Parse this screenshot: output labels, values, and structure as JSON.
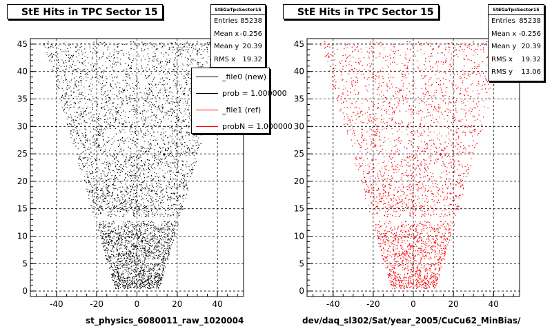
{
  "panels": [
    {
      "title": "StE Hits in TPC Sector 15",
      "stats": {
        "name": "StEGaTpcSector15",
        "rows": [
          {
            "label": "Entries",
            "value": "85238"
          },
          {
            "label": "Mean x",
            "value": "-0.256"
          },
          {
            "label": "Mean y",
            "value": "20.39"
          },
          {
            "label": "RMS x",
            "value": "19.32"
          }
        ]
      },
      "legend": [
        {
          "text": "_file0 (new)",
          "color": "#000000"
        },
        {
          "text": "prob = 1.000000",
          "color": "#000000"
        },
        {
          "text": "_file1 (ref)",
          "color": "#ff0000"
        },
        {
          "text": "probN = 1.000000",
          "color": "#ff0000"
        }
      ],
      "xlabel": "st_physics_6080011_raw_1020004",
      "point_color": "#000000"
    },
    {
      "title": "StE Hits in TPC Sector 15",
      "stats": {
        "name": "StEGaTpcSector15",
        "rows": [
          {
            "label": "Entries",
            "value": "85238"
          },
          {
            "label": "Mean x",
            "value": "-0.256"
          },
          {
            "label": "Mean y",
            "value": "20.39"
          },
          {
            "label": "RMS x",
            "value": "19.32"
          },
          {
            "label": "RMS y",
            "value": "13.06"
          }
        ]
      },
      "xlabel": "dev/daq_sl302/Sat/year_2005/CuCu62_MinBias/",
      "point_color": "#ff0000"
    }
  ],
  "chart_data": [
    {
      "type": "scatter",
      "title": "StE Hits in TPC Sector 15",
      "xlabel": "st_physics_6080011_raw_1020004",
      "ylabel": "",
      "xlim": [
        -53,
        53
      ],
      "ylim": [
        -1,
        46
      ],
      "x_ticks": [
        -40,
        -20,
        0,
        20,
        40
      ],
      "y_ticks": [
        0,
        5,
        10,
        15,
        20,
        25,
        30,
        35,
        40,
        45
      ],
      "grid": true,
      "color": "#000000",
      "entries": 85238,
      "mean_x": -0.256,
      "mean_y": 20.39,
      "rms_x": 19.32,
      "shape": {
        "description": "TPC sector pad-row hits, trapezoid widening with y",
        "bottom_y": 0.5,
        "top_y": 45.5,
        "half_width_at_bottom": 11,
        "half_width_at_top": 47,
        "gap_y": [
          12.8,
          13.6
        ]
      }
    },
    {
      "type": "scatter",
      "title": "StE Hits in TPC Sector 15",
      "xlabel": "dev/daq_sl302/Sat/year_2005/CuCu62_MinBias/",
      "ylabel": "",
      "xlim": [
        -53,
        53
      ],
      "ylim": [
        -1,
        46
      ],
      "x_ticks": [
        -40,
        -20,
        0,
        20,
        40
      ],
      "y_ticks": [
        0,
        5,
        10,
        15,
        20,
        25,
        30,
        35,
        40,
        45
      ],
      "grid": true,
      "color": "#ff0000",
      "entries": 85238,
      "mean_x": -0.256,
      "mean_y": 20.39,
      "rms_x": 19.32,
      "rms_y": 13.06,
      "shape": {
        "description": "TPC sector pad-row hits, trapezoid widening with y",
        "bottom_y": 0.5,
        "top_y": 45.5,
        "half_width_at_bottom": 11,
        "half_width_at_top": 47,
        "gap_y": [
          12.8,
          13.6
        ]
      }
    }
  ]
}
